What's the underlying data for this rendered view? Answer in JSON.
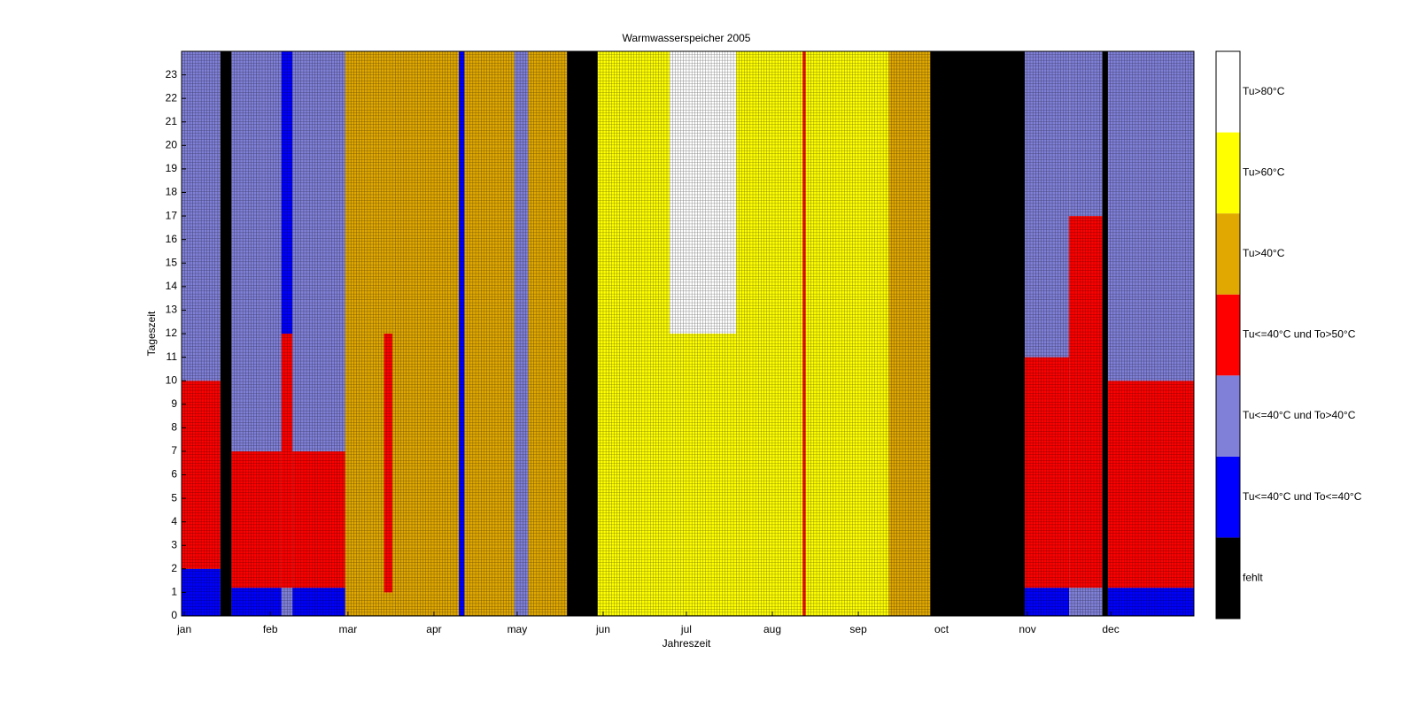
{
  "chart_data": {
    "type": "heatmap",
    "title": "Warmwasserspeicher 2005",
    "x_label": "Jahreszeit",
    "y_label": "Tageszeit",
    "xlim": [
      0,
      365
    ],
    "xticks": [
      {
        "value": 1,
        "label": "jan"
      },
      {
        "value": 32,
        "label": "feb"
      },
      {
        "value": 60,
        "label": "mar"
      },
      {
        "value": 91,
        "label": "apr"
      },
      {
        "value": 121,
        "label": "may"
      },
      {
        "value": 152,
        "label": "jun"
      },
      {
        "value": 182,
        "label": "jul"
      },
      {
        "value": 213,
        "label": "aug"
      },
      {
        "value": 244,
        "label": "sep"
      },
      {
        "value": 274,
        "label": "oct"
      },
      {
        "value": 305,
        "label": "nov"
      },
      {
        "value": 335,
        "label": "dec"
      }
    ],
    "ylim": [
      0,
      24
    ],
    "yticks": [
      0,
      1,
      2,
      3,
      4,
      5,
      6,
      7,
      8,
      9,
      10,
      11,
      12,
      13,
      14,
      15,
      16,
      17,
      18,
      19,
      20,
      21,
      22,
      23
    ],
    "classes": [
      {
        "name": "fehlt",
        "color": "#000000"
      },
      {
        "name": "Tu<=40°C und To<=40°C",
        "color": "#0000ff"
      },
      {
        "name": "Tu<=40°C und To>40°C",
        "color": "#8080d8"
      },
      {
        "name": "Tu<=40°C und To>50°C",
        "color": "#ff0000"
      },
      {
        "name": "Tu>40°C",
        "color": "#e0a800"
      },
      {
        "name": "Tu>60°C",
        "color": "#ffff00"
      },
      {
        "name": "Tu>80°C",
        "color": "#ffffff"
      }
    ],
    "columns": [
      {
        "days": [
          1,
          14
        ],
        "runs": [
          [
            0,
            2,
            1
          ],
          [
            2,
            10,
            3
          ],
          [
            10,
            24,
            2
          ]
        ]
      },
      {
        "days": [
          15,
          18
        ],
        "runs": [
          [
            0,
            24,
            0
          ]
        ]
      },
      {
        "days": [
          19,
          36
        ],
        "runs": [
          [
            0,
            1.2,
            1
          ],
          [
            1.2,
            7,
            3
          ],
          [
            7,
            24,
            2
          ]
        ]
      },
      {
        "days": [
          37,
          40
        ],
        "runs": [
          [
            0,
            1.2,
            2
          ],
          [
            1.2,
            12,
            3
          ],
          [
            12,
            24,
            1
          ]
        ]
      },
      {
        "days": [
          41,
          59
        ],
        "runs": [
          [
            0,
            1.2,
            1
          ],
          [
            1.2,
            7,
            3
          ],
          [
            7,
            24,
            2
          ]
        ]
      },
      {
        "days": [
          60,
          73
        ],
        "runs": [
          [
            0,
            24,
            4
          ]
        ]
      },
      {
        "days": [
          74,
          76
        ],
        "runs": [
          [
            0,
            1,
            4
          ],
          [
            1,
            12,
            3
          ],
          [
            12,
            24,
            4
          ]
        ]
      },
      {
        "days": [
          77,
          100
        ],
        "runs": [
          [
            0,
            24,
            4
          ]
        ]
      },
      {
        "days": [
          101,
          102
        ],
        "runs": [
          [
            0,
            24,
            1
          ]
        ]
      },
      {
        "days": [
          103,
          120
        ],
        "runs": [
          [
            0,
            24,
            4
          ]
        ]
      },
      {
        "days": [
          121,
          125
        ],
        "runs": [
          [
            0,
            24,
            2
          ]
        ]
      },
      {
        "days": [
          126,
          139
        ],
        "runs": [
          [
            0,
            24,
            4
          ]
        ]
      },
      {
        "days": [
          140,
          150
        ],
        "runs": [
          [
            0,
            24,
            0
          ]
        ]
      },
      {
        "days": [
          151,
          176
        ],
        "runs": [
          [
            0,
            24,
            5
          ]
        ]
      },
      {
        "days": [
          177,
          200
        ],
        "runs": [
          [
            0,
            12,
            5
          ],
          [
            12,
            24,
            6
          ]
        ]
      },
      {
        "days": [
          201,
          224
        ],
        "runs": [
          [
            0,
            24,
            5
          ]
        ]
      },
      {
        "days": [
          225,
          225
        ],
        "runs": [
          [
            0,
            24,
            3
          ]
        ]
      },
      {
        "days": [
          226,
          255
        ],
        "runs": [
          [
            0,
            24,
            5
          ]
        ]
      },
      {
        "days": [
          256,
          270
        ],
        "runs": [
          [
            0,
            24,
            4
          ]
        ]
      },
      {
        "days": [
          271,
          304
        ],
        "runs": [
          [
            0,
            24,
            0
          ]
        ]
      },
      {
        "days": [
          305,
          320
        ],
        "runs": [
          [
            0,
            1.2,
            1
          ],
          [
            1.2,
            11,
            3
          ],
          [
            11,
            24,
            2
          ]
        ]
      },
      {
        "days": [
          321,
          332
        ],
        "runs": [
          [
            0,
            1.2,
            2
          ],
          [
            1.2,
            17,
            3
          ],
          [
            17,
            24,
            2
          ]
        ]
      },
      {
        "days": [
          333,
          334
        ],
        "runs": [
          [
            0,
            24,
            0
          ]
        ]
      },
      {
        "days": [
          335,
          365
        ],
        "runs": [
          [
            0,
            1.2,
            1
          ],
          [
            1.2,
            10,
            3
          ],
          [
            10,
            24,
            2
          ]
        ]
      }
    ]
  }
}
